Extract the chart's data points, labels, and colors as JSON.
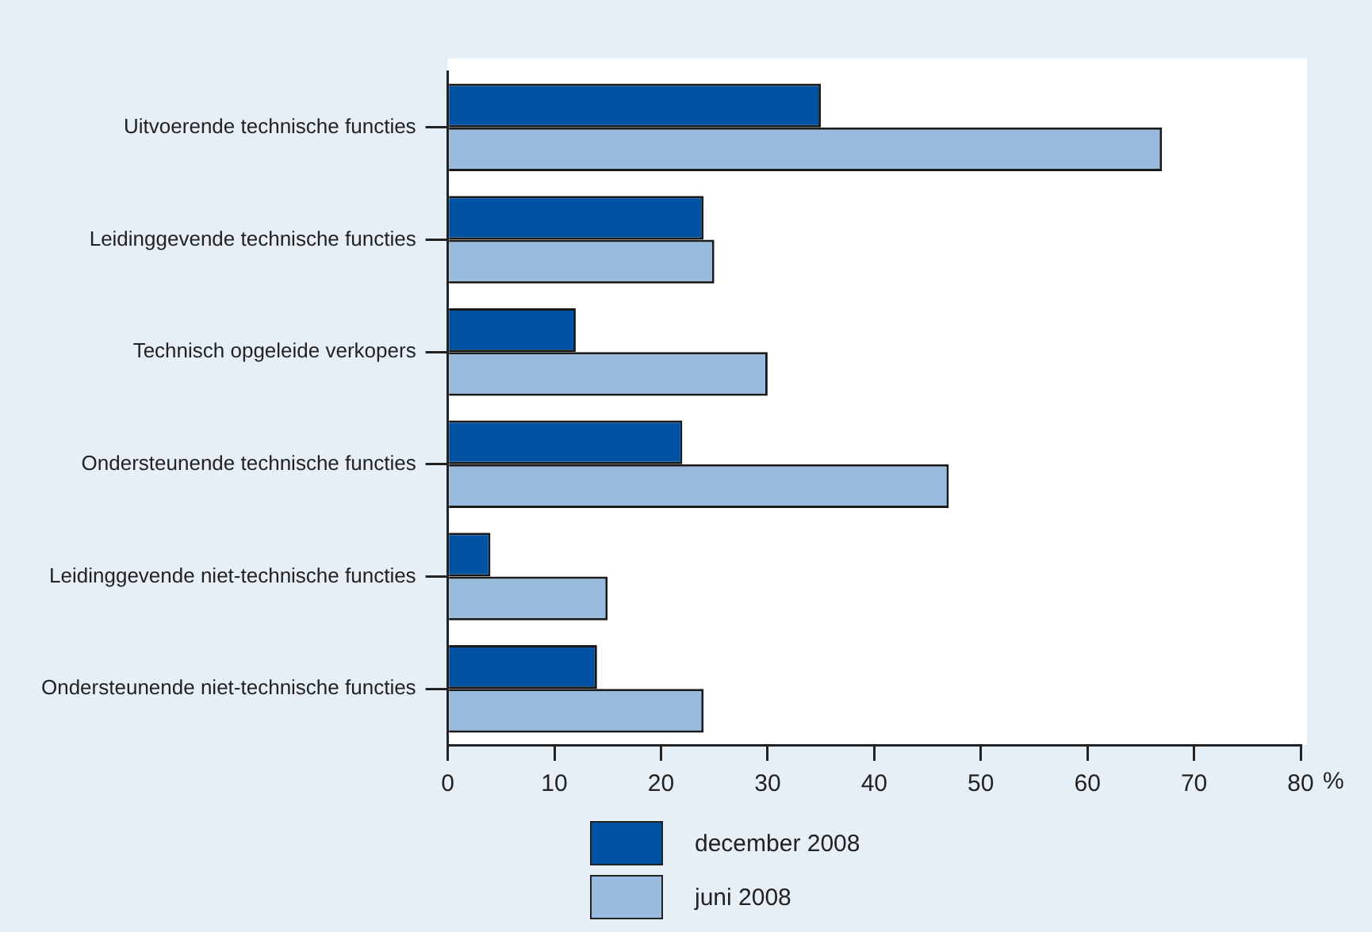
{
  "chart_data": {
    "type": "bar",
    "orientation": "horizontal",
    "xlabel": "%",
    "categories": [
      "Uitvoerende technische functies",
      "Leidinggevende technische functies",
      "Technisch opgeleide verkopers",
      "Ondersteunende technische functies",
      "Leidinggevende niet-technische functies",
      "Ondersteunende niet-technische functies"
    ],
    "series": [
      {
        "name": "december 2008",
        "color": "#0152a3",
        "values": [
          35,
          24,
          12,
          22,
          4,
          14
        ]
      },
      {
        "name": "juni 2008",
        "color": "#98bbdd",
        "values": [
          67,
          25,
          30,
          47,
          15,
          24
        ]
      }
    ],
    "xlim": [
      0,
      80
    ],
    "xticks": [
      0,
      10,
      20,
      30,
      40,
      50,
      60,
      70,
      80
    ],
    "grid": false,
    "legend": "bottom"
  }
}
